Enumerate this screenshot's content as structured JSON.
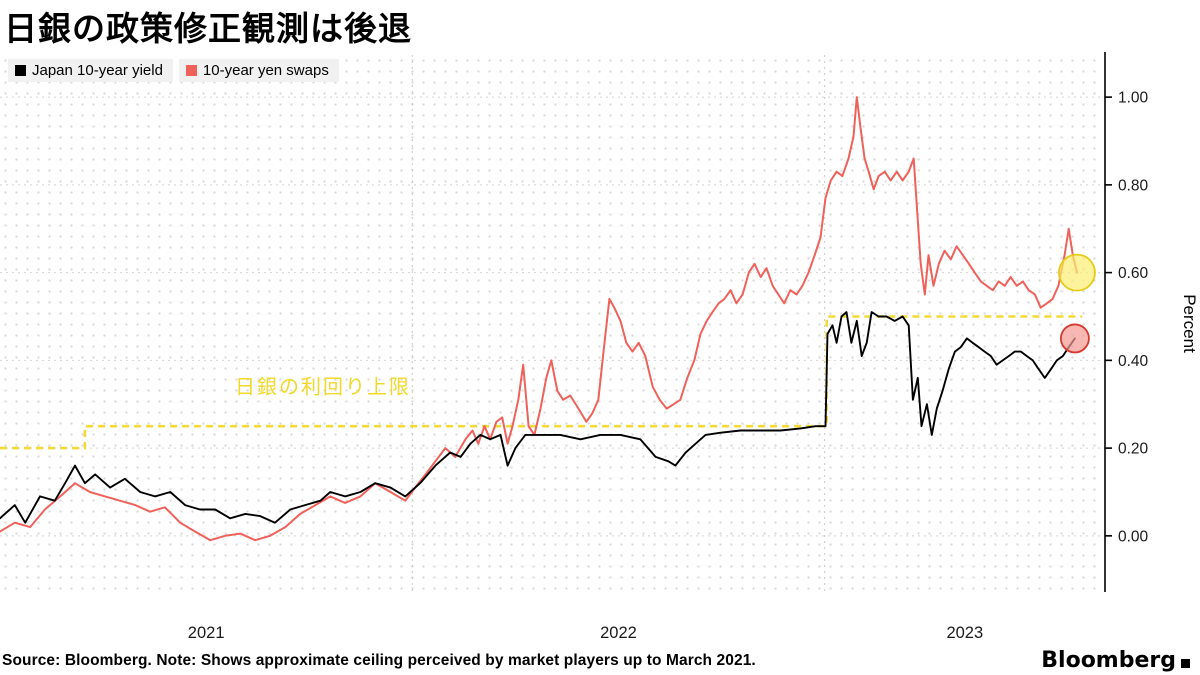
{
  "legend": [
    {
      "label": "Japan 10-year yield",
      "color": "#000000"
    },
    {
      "label": "10-year yen swaps",
      "color": "#ef615a"
    }
  ],
  "footer": {
    "source": "Source: Bloomberg. Note: Shows approximate ceiling perceived by market players up to March 2021.",
    "logo": "Bloomberg"
  },
  "chart_data": {
    "type": "line",
    "title": "日銀の政策修正観測は後退",
    "ylabel": "Percent",
    "x_domain": [
      2021.0,
      2023.68
    ],
    "ylim": [
      -0.128,
      1.096
    ],
    "grid": "dotted",
    "legend_position": "top-left",
    "y_ticks": [
      {
        "v": 1.0,
        "label": "1.00"
      },
      {
        "v": 0.8,
        "label": "0.80"
      },
      {
        "v": 0.6,
        "label": "0.60"
      },
      {
        "v": 0.4,
        "label": "0.40"
      },
      {
        "v": 0.2,
        "label": "0.20"
      },
      {
        "v": 0.0,
        "label": "0.00"
      }
    ],
    "x_ticks": [
      {
        "pos": 2021.5,
        "label": "2021"
      },
      {
        "pos": 2022.5,
        "label": "2022"
      },
      {
        "pos": 2023.34,
        "label": "2023"
      }
    ],
    "year_gridlines": [
      2022.0,
      2023.0
    ],
    "ceiling": {
      "label": "日銀の利回り上限",
      "color": "#f2d829",
      "annotation_pos": {
        "t": 2021.57,
        "v": 0.325
      },
      "segments": [
        {
          "from": 2021.0,
          "to": 2021.206,
          "level": 0.2
        },
        {
          "from": 2021.206,
          "to": 2023.005,
          "level": 0.25
        },
        {
          "from": 2023.005,
          "to": 2023.625,
          "level": 0.5
        }
      ]
    },
    "series": [
      {
        "name": "Japan 10-year yield",
        "color": "#000000",
        "width": 1.9,
        "points": [
          [
            2021.0,
            0.04
          ],
          [
            2021.036,
            0.07
          ],
          [
            2021.061,
            0.03
          ],
          [
            2021.097,
            0.09
          ],
          [
            2021.133,
            0.08
          ],
          [
            2021.158,
            0.12
          ],
          [
            2021.182,
            0.16
          ],
          [
            2021.206,
            0.12
          ],
          [
            2021.231,
            0.14
          ],
          [
            2021.267,
            0.11
          ],
          [
            2021.303,
            0.13
          ],
          [
            2021.34,
            0.1
          ],
          [
            2021.376,
            0.09
          ],
          [
            2021.413,
            0.1
          ],
          [
            2021.449,
            0.07
          ],
          [
            2021.485,
            0.06
          ],
          [
            2021.522,
            0.06
          ],
          [
            2021.558,
            0.04
          ],
          [
            2021.595,
            0.05
          ],
          [
            2021.631,
            0.045
          ],
          [
            2021.667,
            0.03
          ],
          [
            2021.704,
            0.06
          ],
          [
            2021.74,
            0.07
          ],
          [
            2021.777,
            0.08
          ],
          [
            2021.801,
            0.1
          ],
          [
            2021.837,
            0.09
          ],
          [
            2021.874,
            0.1
          ],
          [
            2021.91,
            0.12
          ],
          [
            2021.947,
            0.11
          ],
          [
            2021.983,
            0.09
          ],
          [
            2022.019,
            0.12
          ],
          [
            2022.056,
            0.16
          ],
          [
            2022.092,
            0.19
          ],
          [
            2022.117,
            0.18
          ],
          [
            2022.141,
            0.21
          ],
          [
            2022.165,
            0.23
          ],
          [
            2022.189,
            0.22
          ],
          [
            2022.214,
            0.23
          ],
          [
            2022.231,
            0.16
          ],
          [
            2022.25,
            0.2
          ],
          [
            2022.274,
            0.23
          ],
          [
            2022.311,
            0.23
          ],
          [
            2022.359,
            0.23
          ],
          [
            2022.408,
            0.22
          ],
          [
            2022.456,
            0.23
          ],
          [
            2022.505,
            0.23
          ],
          [
            2022.553,
            0.22
          ],
          [
            2022.59,
            0.18
          ],
          [
            2022.621,
            0.17
          ],
          [
            2022.638,
            0.16
          ],
          [
            2022.663,
            0.19
          ],
          [
            2022.687,
            0.21
          ],
          [
            2022.711,
            0.23
          ],
          [
            2022.748,
            0.235
          ],
          [
            2022.796,
            0.24
          ],
          [
            2022.845,
            0.24
          ],
          [
            2022.893,
            0.24
          ],
          [
            2022.942,
            0.245
          ],
          [
            2022.978,
            0.25
          ],
          [
            2023.002,
            0.25
          ],
          [
            2023.007,
            0.46
          ],
          [
            2023.019,
            0.48
          ],
          [
            2023.029,
            0.44
          ],
          [
            2023.041,
            0.5
          ],
          [
            2023.053,
            0.51
          ],
          [
            2023.065,
            0.44
          ],
          [
            2023.078,
            0.49
          ],
          [
            2023.09,
            0.41
          ],
          [
            2023.102,
            0.44
          ],
          [
            2023.114,
            0.51
          ],
          [
            2023.131,
            0.5
          ],
          [
            2023.15,
            0.5
          ],
          [
            2023.17,
            0.49
          ],
          [
            2023.189,
            0.5
          ],
          [
            2023.204,
            0.48
          ],
          [
            2023.214,
            0.31
          ],
          [
            2023.226,
            0.36
          ],
          [
            2023.235,
            0.25
          ],
          [
            2023.248,
            0.3
          ],
          [
            2023.26,
            0.23
          ],
          [
            2023.272,
            0.29
          ],
          [
            2023.286,
            0.33
          ],
          [
            2023.301,
            0.38
          ],
          [
            2023.316,
            0.42
          ],
          [
            2023.33,
            0.43
          ],
          [
            2023.345,
            0.45
          ],
          [
            2023.359,
            0.44
          ],
          [
            2023.374,
            0.43
          ],
          [
            2023.388,
            0.42
          ],
          [
            2023.403,
            0.41
          ],
          [
            2023.417,
            0.39
          ],
          [
            2023.432,
            0.4
          ],
          [
            2023.447,
            0.41
          ],
          [
            2023.461,
            0.42
          ],
          [
            2023.476,
            0.42
          ],
          [
            2023.49,
            0.41
          ],
          [
            2023.505,
            0.4
          ],
          [
            2023.519,
            0.38
          ],
          [
            2023.534,
            0.36
          ],
          [
            2023.549,
            0.38
          ],
          [
            2023.563,
            0.4
          ],
          [
            2023.578,
            0.41
          ],
          [
            2023.592,
            0.43
          ],
          [
            2023.607,
            0.45
          ]
        ]
      },
      {
        "name": "10-year yen swaps",
        "color": "#ef615a",
        "width": 2.0,
        "points": [
          [
            2021.0,
            0.01
          ],
          [
            2021.036,
            0.03
          ],
          [
            2021.073,
            0.02
          ],
          [
            2021.109,
            0.06
          ],
          [
            2021.146,
            0.09
          ],
          [
            2021.182,
            0.12
          ],
          [
            2021.218,
            0.1
          ],
          [
            2021.255,
            0.09
          ],
          [
            2021.291,
            0.08
          ],
          [
            2021.328,
            0.07
          ],
          [
            2021.364,
            0.055
          ],
          [
            2021.4,
            0.065
          ],
          [
            2021.437,
            0.03
          ],
          [
            2021.473,
            0.01
          ],
          [
            2021.51,
            -0.01
          ],
          [
            2021.546,
            0.0
          ],
          [
            2021.583,
            0.005
          ],
          [
            2021.619,
            -0.01
          ],
          [
            2021.655,
            0.0
          ],
          [
            2021.692,
            0.02
          ],
          [
            2021.728,
            0.05
          ],
          [
            2021.765,
            0.07
          ],
          [
            2021.801,
            0.09
          ],
          [
            2021.837,
            0.075
          ],
          [
            2021.874,
            0.09
          ],
          [
            2021.91,
            0.12
          ],
          [
            2021.947,
            0.1
          ],
          [
            2021.983,
            0.08
          ],
          [
            2022.007,
            0.11
          ],
          [
            2022.032,
            0.14
          ],
          [
            2022.056,
            0.17
          ],
          [
            2022.08,
            0.2
          ],
          [
            2022.104,
            0.18
          ],
          [
            2022.129,
            0.22
          ],
          [
            2022.146,
            0.24
          ],
          [
            2022.16,
            0.21
          ],
          [
            2022.175,
            0.25
          ],
          [
            2022.189,
            0.22
          ],
          [
            2022.204,
            0.26
          ],
          [
            2022.218,
            0.27
          ],
          [
            2022.231,
            0.21
          ],
          [
            2022.243,
            0.25
          ],
          [
            2022.257,
            0.31
          ],
          [
            2022.269,
            0.39
          ],
          [
            2022.282,
            0.25
          ],
          [
            2022.296,
            0.23
          ],
          [
            2022.311,
            0.29
          ],
          [
            2022.325,
            0.36
          ],
          [
            2022.337,
            0.4
          ],
          [
            2022.352,
            0.33
          ],
          [
            2022.366,
            0.31
          ],
          [
            2022.383,
            0.32
          ],
          [
            2022.403,
            0.29
          ],
          [
            2022.422,
            0.26
          ],
          [
            2022.437,
            0.28
          ],
          [
            2022.451,
            0.31
          ],
          [
            2022.466,
            0.44
          ],
          [
            2022.478,
            0.54
          ],
          [
            2022.49,
            0.52
          ],
          [
            2022.505,
            0.49
          ],
          [
            2022.519,
            0.44
          ],
          [
            2022.534,
            0.42
          ],
          [
            2022.549,
            0.44
          ],
          [
            2022.565,
            0.41
          ],
          [
            2022.583,
            0.34
          ],
          [
            2022.6,
            0.31
          ],
          [
            2022.617,
            0.29
          ],
          [
            2022.634,
            0.3
          ],
          [
            2022.65,
            0.31
          ],
          [
            2022.667,
            0.36
          ],
          [
            2022.684,
            0.4
          ],
          [
            2022.699,
            0.46
          ],
          [
            2022.714,
            0.49
          ],
          [
            2022.728,
            0.51
          ],
          [
            2022.743,
            0.53
          ],
          [
            2022.757,
            0.54
          ],
          [
            2022.772,
            0.56
          ],
          [
            2022.786,
            0.53
          ],
          [
            2022.801,
            0.55
          ],
          [
            2022.816,
            0.6
          ],
          [
            2022.83,
            0.62
          ],
          [
            2022.845,
            0.59
          ],
          [
            2022.859,
            0.61
          ],
          [
            2022.874,
            0.57
          ],
          [
            2022.888,
            0.55
          ],
          [
            2022.902,
            0.53
          ],
          [
            2022.917,
            0.56
          ],
          [
            2022.932,
            0.55
          ],
          [
            2022.946,
            0.57
          ],
          [
            2022.961,
            0.6
          ],
          [
            2022.976,
            0.64
          ],
          [
            2022.99,
            0.68
          ],
          [
            2023.002,
            0.77
          ],
          [
            2023.015,
            0.81
          ],
          [
            2023.029,
            0.83
          ],
          [
            2023.043,
            0.82
          ],
          [
            2023.058,
            0.86
          ],
          [
            2023.07,
            0.91
          ],
          [
            2023.078,
            1.0
          ],
          [
            2023.087,
            0.93
          ],
          [
            2023.097,
            0.86
          ],
          [
            2023.107,
            0.83
          ],
          [
            2023.119,
            0.79
          ],
          [
            2023.131,
            0.82
          ],
          [
            2023.146,
            0.83
          ],
          [
            2023.16,
            0.81
          ],
          [
            2023.175,
            0.83
          ],
          [
            2023.189,
            0.81
          ],
          [
            2023.204,
            0.83
          ],
          [
            2023.216,
            0.86
          ],
          [
            2023.223,
            0.76
          ],
          [
            2023.233,
            0.62
          ],
          [
            2023.243,
            0.55
          ],
          [
            2023.252,
            0.64
          ],
          [
            2023.264,
            0.57
          ],
          [
            2023.277,
            0.62
          ],
          [
            2023.291,
            0.65
          ],
          [
            2023.306,
            0.63
          ],
          [
            2023.32,
            0.66
          ],
          [
            2023.335,
            0.64
          ],
          [
            2023.35,
            0.62
          ],
          [
            2023.364,
            0.6
          ],
          [
            2023.379,
            0.58
          ],
          [
            2023.393,
            0.57
          ],
          [
            2023.408,
            0.56
          ],
          [
            2023.422,
            0.58
          ],
          [
            2023.437,
            0.57
          ],
          [
            2023.451,
            0.59
          ],
          [
            2023.466,
            0.57
          ],
          [
            2023.481,
            0.58
          ],
          [
            2023.495,
            0.56
          ],
          [
            2023.51,
            0.55
          ],
          [
            2023.524,
            0.52
          ],
          [
            2023.539,
            0.53
          ],
          [
            2023.553,
            0.54
          ],
          [
            2023.567,
            0.57
          ],
          [
            2023.582,
            0.64
          ],
          [
            2023.592,
            0.7
          ],
          [
            2023.602,
            0.64
          ],
          [
            2023.612,
            0.6
          ]
        ]
      }
    ],
    "end_markers": [
      {
        "series": "10-year yen swaps",
        "t": 2023.612,
        "v": 0.6,
        "r": 18,
        "fill": "#fbee72",
        "stroke": "#e4cc18"
      },
      {
        "series": "Japan 10-year yield",
        "t": 2023.607,
        "v": 0.45,
        "r": 14,
        "fill": "#f49a94",
        "stroke": "#d6382e"
      }
    ]
  }
}
